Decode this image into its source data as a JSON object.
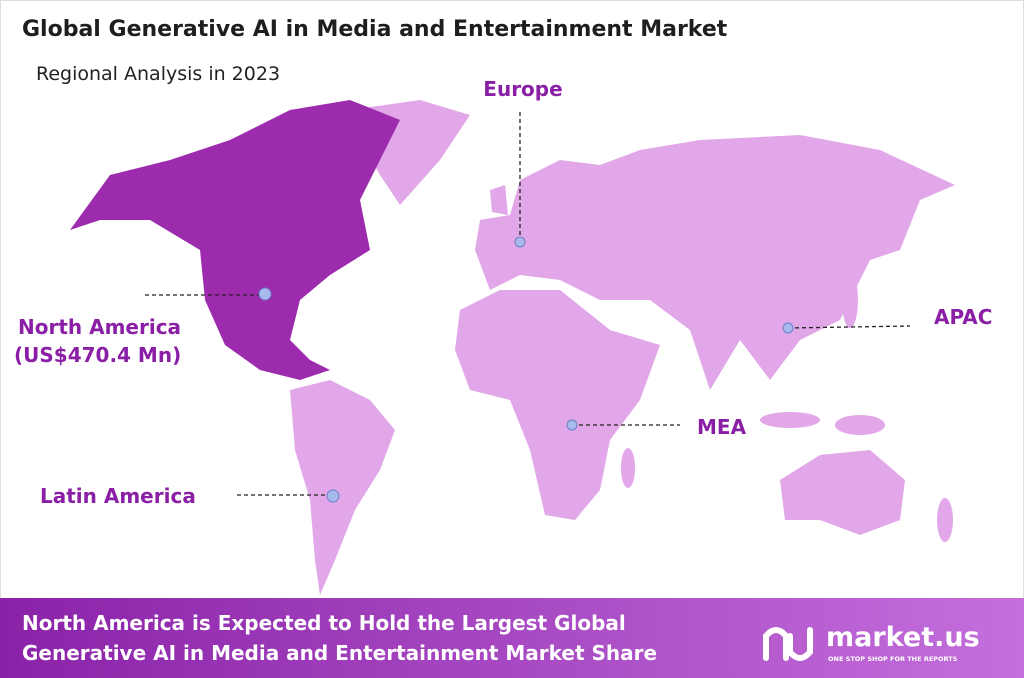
{
  "header": {
    "title": "Global Generative AI in Media and Entertainment Market",
    "subtitle": "Regional Analysis in 2023"
  },
  "regions": [
    {
      "label": "Europe"
    },
    {
      "label": "North America",
      "value_label": "(US$470.4 Mn)"
    },
    {
      "label": "APAC"
    },
    {
      "label": "MEA"
    },
    {
      "label": "Latin America"
    }
  ],
  "footer": {
    "lines": [
      "North America is Expected to Hold the Largest Global",
      "Generative AI in Media and Entertainment Market Share"
    ]
  },
  "logo": {
    "name": "market.us",
    "tagline": "ONE STOP SHOP FOR THE REPORTS"
  }
}
